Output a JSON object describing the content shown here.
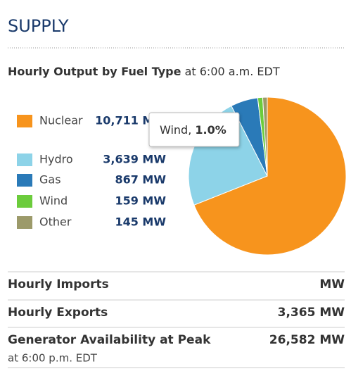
{
  "header": {
    "title": "SUPPLY",
    "subtitle_bold": "Hourly Output by Fuel Type",
    "subtitle_rest": "at 6:00 a.m. EDT"
  },
  "chart_data": {
    "type": "pie",
    "categories": [
      "Nuclear",
      "Hydro",
      "Gas",
      "Wind",
      "Other"
    ],
    "values": [
      10711,
      3639,
      867,
      159,
      145
    ],
    "value_labels": [
      "10,711 MW",
      "3,639 MW",
      "867 MW",
      "159 MW",
      "145 MW"
    ],
    "colors": [
      "#f7941d",
      "#8dd3e8",
      "#2a7ab8",
      "#6ccc3c",
      "#9c9a6a"
    ]
  },
  "tooltip": {
    "label": "Wind,",
    "value": "1.0%"
  },
  "table": {
    "rows": [
      {
        "label": "Hourly Imports",
        "value": "MW"
      },
      {
        "label": "Hourly Exports",
        "value": "3,365 MW"
      },
      {
        "label": "Generator Availability at Peak",
        "value": "26,582 MW",
        "note": "at 6:00 p.m. EDT"
      }
    ]
  }
}
